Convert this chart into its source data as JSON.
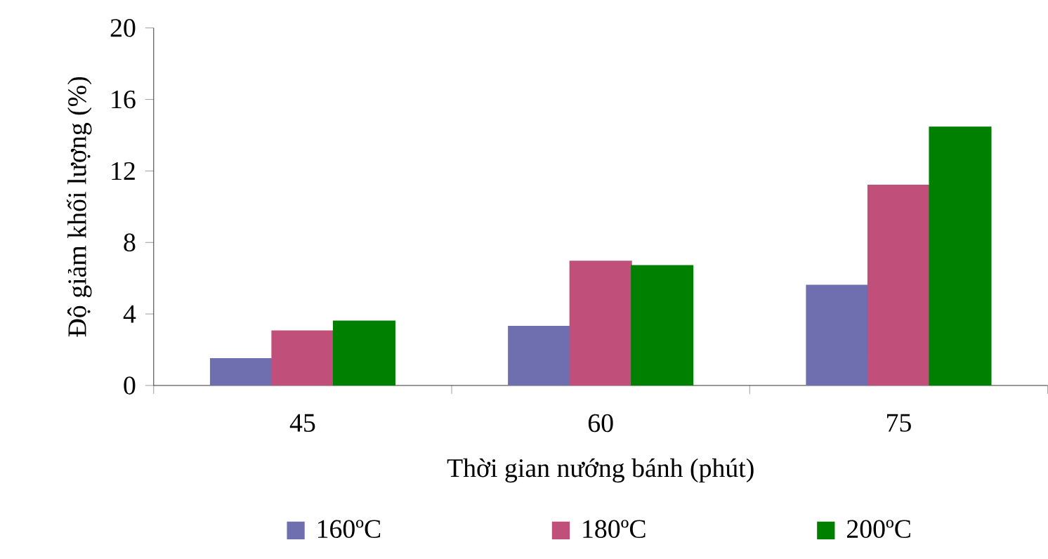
{
  "chart_data": {
    "type": "bar",
    "xlabel": "Thời gian nướng bánh (phút)",
    "ylabel": "Độ giảm khối lượng (%)",
    "categories": [
      "45",
      "60",
      "75"
    ],
    "series": [
      {
        "name": "160ºC",
        "color": "#6f6fb0",
        "values": [
          1.5,
          3.3,
          5.6
        ]
      },
      {
        "name": "180ºC",
        "color": "#c0507a",
        "values": [
          3.05,
          6.95,
          11.2
        ]
      },
      {
        "name": "200ºC",
        "color": "#008000",
        "values": [
          3.6,
          6.7,
          14.45
        ]
      }
    ],
    "ylim": [
      0,
      20
    ],
    "yticks": [
      0,
      4,
      8,
      12,
      16,
      20
    ],
    "grid": false,
    "legend": "bottom"
  }
}
